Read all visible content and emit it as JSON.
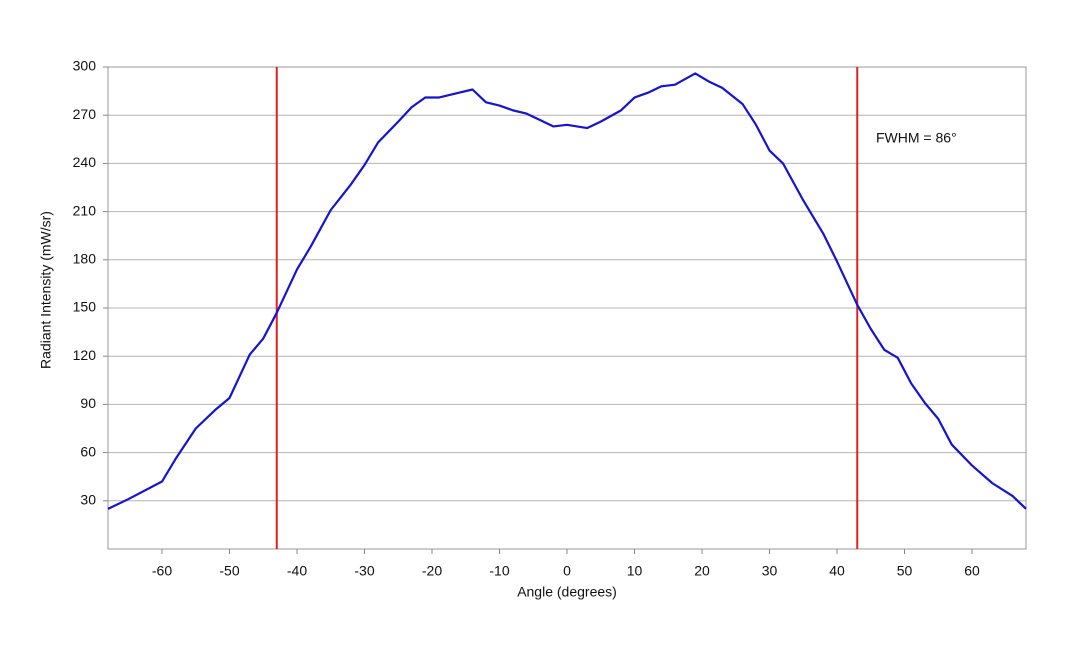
{
  "chart_data": {
    "type": "line",
    "x_label": "Angle (degrees)",
    "y_label": "Radiant Intensity (mW/sr)",
    "annotation": "FWHM = 86°",
    "x": [
      -68,
      -65,
      -60,
      -58,
      -55,
      -52,
      -50,
      -47,
      -45,
      -43,
      -40,
      -38,
      -35,
      -32,
      -30,
      -28,
      -25,
      -23,
      -21,
      -19,
      -16,
      -14,
      -12,
      -10,
      -8,
      -6,
      -4,
      -2,
      0,
      3,
      5,
      8,
      10,
      12,
      14,
      16,
      19,
      21,
      23,
      26,
      28,
      30,
      32,
      35,
      38,
      40,
      43,
      45,
      47,
      49,
      51,
      53,
      55,
      57,
      60,
      63,
      66,
      68
    ],
    "series": [
      {
        "name": "Radiant Intensity",
        "color": "#1414d2",
        "values": [
          25,
          31,
          42,
          56,
          75,
          87,
          94,
          121,
          131,
          147,
          174,
          188,
          211,
          227,
          239,
          253,
          266,
          275,
          281,
          281,
          284,
          286,
          278,
          276,
          273,
          271,
          267,
          263,
          264,
          262,
          266,
          273,
          281,
          284,
          288,
          289,
          296,
          291,
          287,
          277,
          264,
          248,
          240,
          217,
          196,
          179,
          152,
          137,
          124,
          119,
          103,
          91,
          81,
          65,
          52,
          41,
          33,
          25
        ]
      }
    ],
    "vlines": [
      -43,
      43
    ],
    "vline_color": "#e0201e",
    "xlim": [
      -68,
      68
    ],
    "xticks": [
      -60,
      -50,
      -40,
      -30,
      -20,
      -10,
      0,
      10,
      20,
      30,
      40,
      50,
      60
    ],
    "ylim": [
      0,
      300
    ],
    "yticks": [
      30,
      60,
      90,
      120,
      150,
      180,
      210,
      240,
      270,
      300
    ],
    "grid": true
  }
}
